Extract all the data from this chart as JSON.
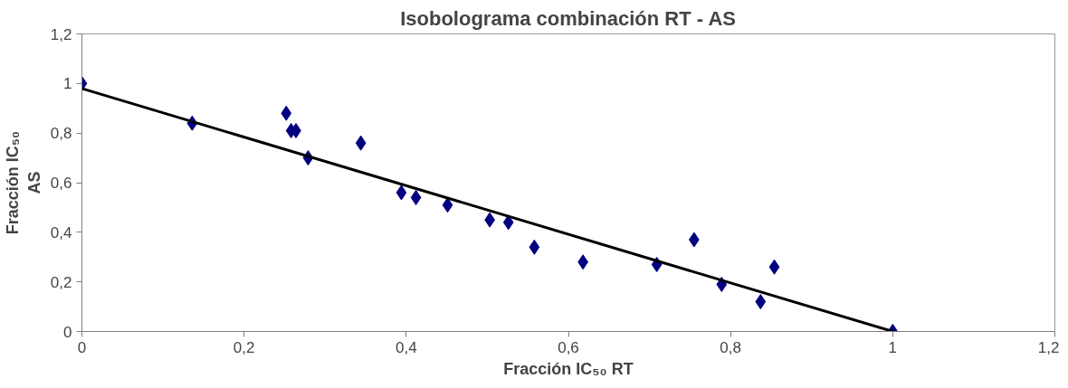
{
  "chart_data": {
    "type": "scatter",
    "title": "Isobolograma combinación RT - AS",
    "xlabel": "Fracción IC₅₀ RT",
    "ylabel": "Fracción IC₅₀\nAS",
    "series": [
      {
        "color": "#000080",
        "marker": "diamond",
        "x": [
          0,
          0.136,
          0.252,
          0.258,
          0.264,
          0.279,
          0.344,
          0.394,
          0.412,
          0.451,
          0.503,
          0.526,
          0.558,
          0.618,
          0.709,
          0.755,
          0.789,
          0.837,
          0.854,
          1.0
        ],
        "values": [
          1.0,
          0.84,
          0.88,
          0.81,
          0.81,
          0.7,
          0.76,
          0.56,
          0.54,
          0.51,
          0.45,
          0.44,
          0.34,
          0.28,
          0.27,
          0.37,
          0.19,
          0.12,
          0.26,
          0.0
        ]
      },
      {
        "type": "line",
        "color": "#000000",
        "marker": "none",
        "line_style": "solid",
        "x": [
          0,
          1
        ],
        "values": [
          0.98,
          0
        ]
      }
    ],
    "xlim": [
      0,
      1.2
    ],
    "ylim": [
      0,
      1.2
    ],
    "xticks": [
      0,
      {
        "value": 0.2,
        "label": "0,2"
      },
      {
        "value": 0.4,
        "label": "0,4"
      },
      {
        "value": 0.6,
        "label": "0,6"
      },
      {
        "value": 0.8,
        "label": "0,8"
      },
      1,
      {
        "value": 1.2,
        "label": "1,2"
      }
    ],
    "yticks": [
      0,
      {
        "value": 0.2,
        "label": "0,2"
      },
      {
        "value": 0.4,
        "label": "0,4"
      },
      {
        "value": 0.6,
        "label": "0,6"
      },
      {
        "value": 0.8,
        "label": "0,8"
      },
      1,
      {
        "value": 1.2,
        "label": "1,2"
      }
    ],
    "grid": false
  }
}
